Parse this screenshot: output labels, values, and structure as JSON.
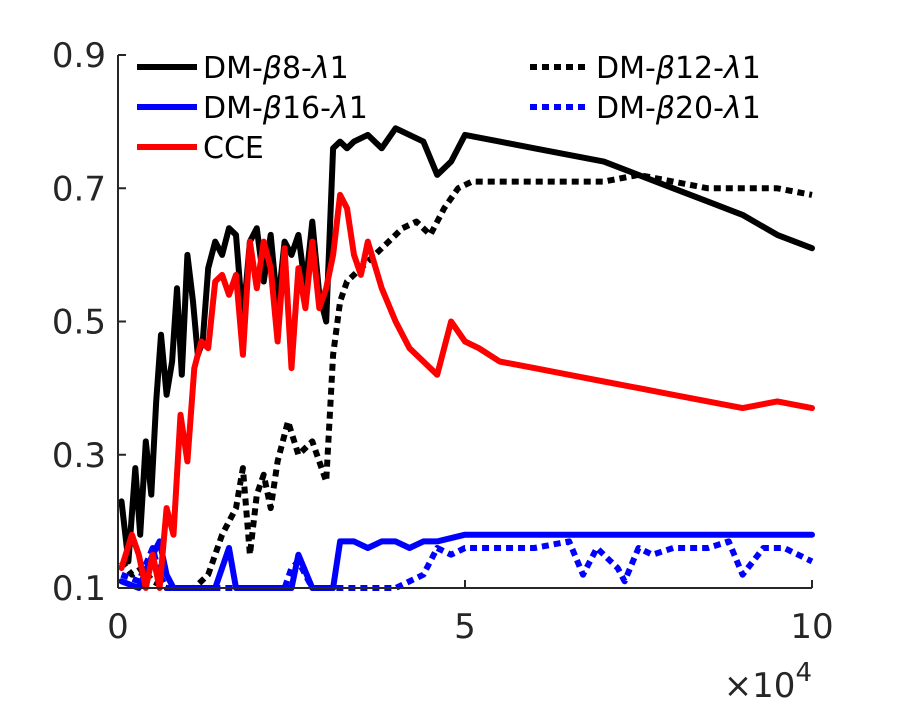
{
  "chart_data": {
    "type": "line",
    "title": "",
    "xlabel": "",
    "ylabel": "",
    "x_multiplier_label": "×10",
    "x_multiplier_exponent": "4",
    "xlim": [
      0,
      10
    ],
    "ylim": [
      0.1,
      0.9
    ],
    "xticks": [
      "0",
      "5",
      "10"
    ],
    "yticks": [
      "0.1",
      "0.3",
      "0.5",
      "0.7",
      "0.9"
    ],
    "grid": false,
    "legend_position": "top",
    "series": [
      {
        "name": "DM-β8-λ1",
        "legend_prefix": "DM-",
        "legend_greek1": "β",
        "legend_mid": "8-",
        "legend_greek2": "λ",
        "legend_suffix": "1",
        "color": "#000000",
        "dash": "solid",
        "x": [
          0.05,
          0.15,
          0.25,
          0.32,
          0.4,
          0.48,
          0.55,
          0.62,
          0.7,
          0.78,
          0.85,
          0.92,
          1.0,
          1.08,
          1.15,
          1.22,
          1.3,
          1.4,
          1.5,
          1.6,
          1.7,
          1.8,
          1.9,
          2.0,
          2.1,
          2.2,
          2.3,
          2.4,
          2.5,
          2.6,
          2.7,
          2.8,
          2.9,
          3.0,
          3.1,
          3.2,
          3.3,
          3.4,
          3.6,
          3.8,
          4.0,
          4.2,
          4.4,
          4.6,
          4.8,
          5.0,
          5.5,
          6.0,
          6.5,
          7.0,
          7.5,
          8.0,
          8.5,
          9.0,
          9.5,
          10.0
        ],
        "values": [
          0.23,
          0.14,
          0.28,
          0.18,
          0.32,
          0.24,
          0.38,
          0.48,
          0.39,
          0.44,
          0.55,
          0.42,
          0.6,
          0.53,
          0.45,
          0.47,
          0.58,
          0.62,
          0.6,
          0.64,
          0.63,
          0.5,
          0.62,
          0.64,
          0.56,
          0.63,
          0.52,
          0.62,
          0.6,
          0.63,
          0.55,
          0.65,
          0.54,
          0.5,
          0.76,
          0.77,
          0.76,
          0.77,
          0.78,
          0.76,
          0.79,
          0.78,
          0.77,
          0.72,
          0.74,
          0.78,
          0.77,
          0.76,
          0.75,
          0.74,
          0.72,
          0.7,
          0.68,
          0.66,
          0.63,
          0.61
        ]
      },
      {
        "name": "DM-β12-λ1",
        "legend_prefix": "DM-",
        "legend_greek1": "β",
        "legend_mid": "12-",
        "legend_greek2": "λ",
        "legend_suffix": "1",
        "color": "#000000",
        "dash": "dotted",
        "x": [
          0.05,
          0.2,
          0.35,
          0.5,
          0.7,
          0.9,
          1.1,
          1.3,
          1.5,
          1.7,
          1.8,
          1.9,
          2.0,
          2.1,
          2.2,
          2.3,
          2.45,
          2.6,
          2.8,
          3.0,
          3.1,
          3.2,
          3.3,
          3.5,
          3.7,
          3.9,
          4.1,
          4.3,
          4.5,
          4.7,
          4.9,
          5.1,
          5.5,
          6.0,
          6.5,
          7.0,
          7.5,
          8.0,
          8.5,
          9.0,
          9.5,
          10.0
        ],
        "values": [
          0.14,
          0.12,
          0.13,
          0.11,
          0.1,
          0.1,
          0.1,
          0.12,
          0.18,
          0.22,
          0.28,
          0.15,
          0.24,
          0.27,
          0.22,
          0.29,
          0.35,
          0.3,
          0.32,
          0.26,
          0.45,
          0.53,
          0.56,
          0.58,
          0.6,
          0.62,
          0.64,
          0.65,
          0.63,
          0.67,
          0.7,
          0.71,
          0.71,
          0.71,
          0.71,
          0.71,
          0.72,
          0.71,
          0.7,
          0.7,
          0.7,
          0.69
        ]
      },
      {
        "name": "DM-β16-λ1",
        "legend_prefix": "DM-",
        "legend_greek1": "β",
        "legend_mid": "16-",
        "legend_greek2": "λ",
        "legend_suffix": "1",
        "color": "#0000ff",
        "dash": "solid",
        "x": [
          0.05,
          0.3,
          0.5,
          0.6,
          0.7,
          0.8,
          1.0,
          1.2,
          1.4,
          1.6,
          1.7,
          1.8,
          2.0,
          2.5,
          2.6,
          2.8,
          2.9,
          3.0,
          3.1,
          3.2,
          3.3,
          3.4,
          3.6,
          3.8,
          4.0,
          4.2,
          4.4,
          4.6,
          5.0,
          6.0,
          7.0,
          8.0,
          9.0,
          10.0
        ],
        "values": [
          0.11,
          0.1,
          0.15,
          0.17,
          0.12,
          0.1,
          0.1,
          0.1,
          0.1,
          0.16,
          0.1,
          0.1,
          0.1,
          0.1,
          0.15,
          0.1,
          0.1,
          0.1,
          0.1,
          0.17,
          0.17,
          0.17,
          0.16,
          0.17,
          0.17,
          0.16,
          0.17,
          0.17,
          0.18,
          0.18,
          0.18,
          0.18,
          0.18,
          0.18
        ]
      },
      {
        "name": "DM-β20-λ1",
        "legend_prefix": "DM-",
        "legend_greek1": "β",
        "legend_mid": "20-",
        "legend_greek2": "λ",
        "legend_suffix": "1",
        "color": "#0000ff",
        "dash": "dotted",
        "x": [
          0.05,
          0.3,
          0.5,
          0.6,
          0.7,
          0.8,
          1.0,
          2.4,
          2.5,
          2.6,
          2.8,
          3.0,
          3.2,
          3.5,
          4.0,
          4.4,
          4.6,
          4.8,
          5.0,
          5.5,
          6.0,
          6.5,
          6.7,
          6.9,
          7.1,
          7.2,
          7.3,
          7.5,
          7.7,
          8.0,
          8.5,
          8.8,
          9.0,
          9.3,
          9.6,
          10.0
        ],
        "values": [
          0.12,
          0.11,
          0.16,
          0.12,
          0.1,
          0.1,
          0.1,
          0.1,
          0.13,
          0.14,
          0.1,
          0.1,
          0.1,
          0.1,
          0.1,
          0.12,
          0.16,
          0.15,
          0.16,
          0.16,
          0.16,
          0.17,
          0.12,
          0.16,
          0.14,
          0.13,
          0.11,
          0.16,
          0.15,
          0.16,
          0.16,
          0.17,
          0.12,
          0.16,
          0.16,
          0.14
        ]
      },
      {
        "name": "CCE",
        "legend_prefix": "CCE",
        "legend_greek1": "",
        "legend_mid": "",
        "legend_greek2": "",
        "legend_suffix": "",
        "color": "#ff0000",
        "dash": "solid",
        "x": [
          0.05,
          0.2,
          0.3,
          0.4,
          0.5,
          0.6,
          0.7,
          0.8,
          0.9,
          1.0,
          1.1,
          1.2,
          1.3,
          1.4,
          1.5,
          1.6,
          1.7,
          1.8,
          1.9,
          2.0,
          2.1,
          2.2,
          2.3,
          2.4,
          2.5,
          2.6,
          2.7,
          2.8,
          2.9,
          3.0,
          3.1,
          3.2,
          3.3,
          3.4,
          3.5,
          3.6,
          3.8,
          4.0,
          4.2,
          4.4,
          4.6,
          4.8,
          5.0,
          5.2,
          5.5,
          6.0,
          6.5,
          7.0,
          7.5,
          8.0,
          8.5,
          9.0,
          9.5,
          10.0
        ],
        "values": [
          0.13,
          0.18,
          0.15,
          0.1,
          0.15,
          0.1,
          0.22,
          0.18,
          0.36,
          0.29,
          0.43,
          0.47,
          0.46,
          0.56,
          0.57,
          0.54,
          0.57,
          0.45,
          0.62,
          0.55,
          0.62,
          0.58,
          0.47,
          0.61,
          0.43,
          0.58,
          0.52,
          0.62,
          0.52,
          0.55,
          0.6,
          0.69,
          0.67,
          0.6,
          0.57,
          0.62,
          0.55,
          0.5,
          0.46,
          0.44,
          0.42,
          0.5,
          0.47,
          0.46,
          0.44,
          0.43,
          0.42,
          0.41,
          0.4,
          0.39,
          0.38,
          0.37,
          0.38,
          0.37
        ]
      }
    ]
  }
}
